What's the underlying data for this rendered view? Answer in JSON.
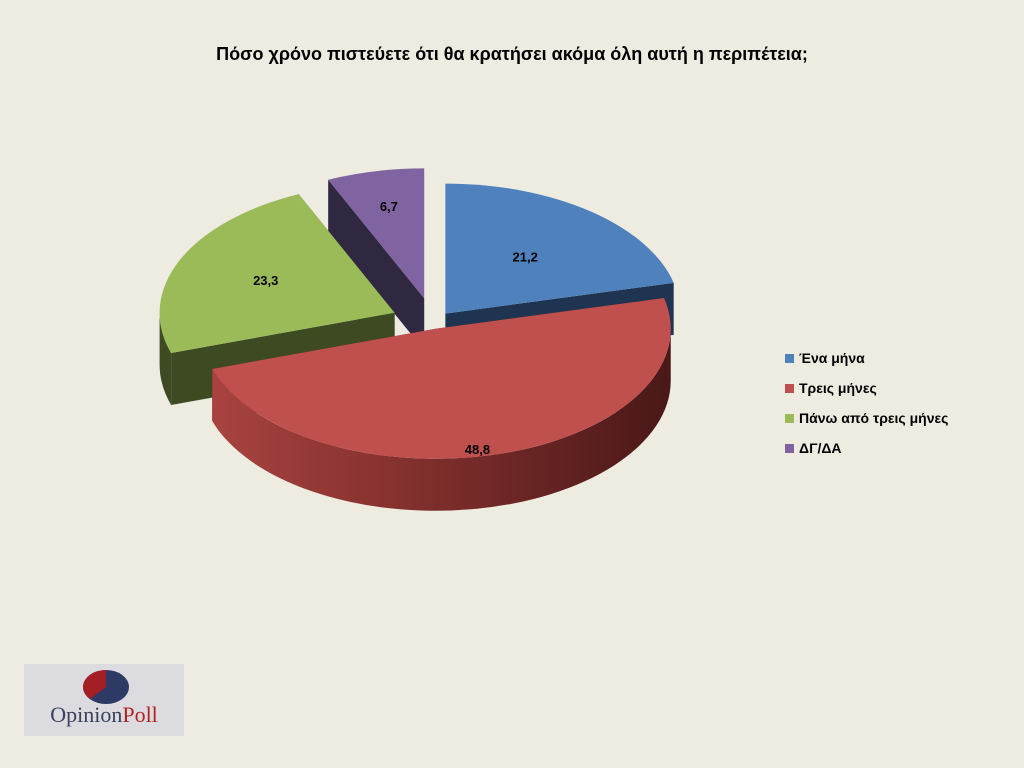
{
  "chart_data": {
    "type": "pie",
    "title": "Πόσο χρόνο πιστεύετε ότι θα κρατήσει ακόμα όλη αυτή η περιπέτεια;",
    "categories": [
      "Ένα μήνα",
      "Τρεις μήνες",
      "Πάνω από τρεις μήνες",
      "ΔΓ/ΔΑ"
    ],
    "values": [
      21.2,
      48.8,
      23.3,
      6.7
    ],
    "value_labels": [
      "21,2",
      "48,8",
      "23,3",
      "6,7"
    ],
    "colors": [
      "#4F81BD",
      "#C0504D",
      "#9BBB59",
      "#8064A2"
    ],
    "legend_position": "right",
    "style": "3d-exploded"
  },
  "logo": {
    "text_part1": "Opinion",
    "text_part2": "Poll"
  }
}
